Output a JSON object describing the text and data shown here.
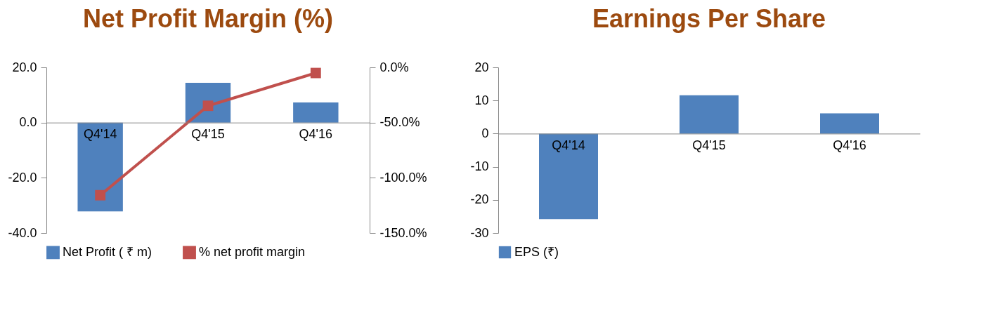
{
  "chart_data": [
    {
      "type": "bar",
      "title": "Net Profit Margin (%)",
      "categories": [
        "Q4'14",
        "Q4'15",
        "Q4'16"
      ],
      "series": [
        {
          "name": "Net Profit ( ₹ m)",
          "color": "#4f81bd",
          "values": [
            -32.2,
            14.4,
            7.3
          ]
        },
        {
          "name": "% net profit margin",
          "type": "line",
          "axis": "y2",
          "color": "#c0504d",
          "values": [
            -115.8,
            -34.8,
            -5.1
          ]
        }
      ],
      "ylim": [
        -40,
        20
      ],
      "yticks": [
        {
          "value": -40,
          "label": "-40.0"
        },
        {
          "value": -20,
          "label": "-20.0"
        },
        {
          "value": 0,
          "label": "0.0"
        },
        {
          "value": 20,
          "label": "20.0"
        }
      ],
      "y2lim": [
        -150,
        0
      ],
      "y2ticks": [
        {
          "value": -150,
          "label": "-150.0%"
        },
        {
          "value": -100,
          "label": "-100.0%"
        },
        {
          "value": -50,
          "label": "-50.0%"
        },
        {
          "value": 0,
          "label": "0.0%"
        }
      ],
      "marker": "square",
      "legend": "bottom",
      "grid": false
    },
    {
      "type": "bar",
      "title": "Earnings Per Share",
      "categories": [
        "Q4'14",
        "Q4'15",
        "Q4'16"
      ],
      "series": [
        {
          "name": "EPS (₹)",
          "color": "#4f81bd",
          "values": [
            -25.8,
            11.6,
            6.1
          ]
        }
      ],
      "ylim": [
        -30,
        20
      ],
      "yticks": [
        -30,
        -20,
        -10,
        0,
        10,
        20
      ],
      "legend": "bottom",
      "grid": false
    }
  ]
}
